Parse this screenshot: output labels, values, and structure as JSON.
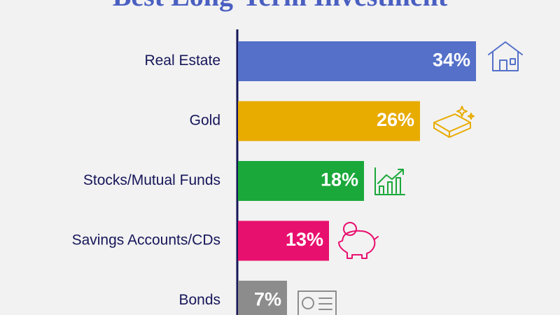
{
  "chart_data": {
    "type": "bar",
    "orientation": "horizontal",
    "title": "Best Long-Term Investment",
    "categories": [
      "Real Estate",
      "Gold",
      "Stocks/Mutual Funds",
      "Savings Accounts/CDs",
      "Bonds"
    ],
    "values": [
      34,
      26,
      18,
      13,
      7
    ],
    "value_labels": [
      "34%",
      "26%",
      "18%",
      "13%",
      "7%"
    ],
    "colors": [
      "#5470c9",
      "#e8ab00",
      "#1aa83a",
      "#e8106e",
      "#8c8c8c"
    ]
  }
}
